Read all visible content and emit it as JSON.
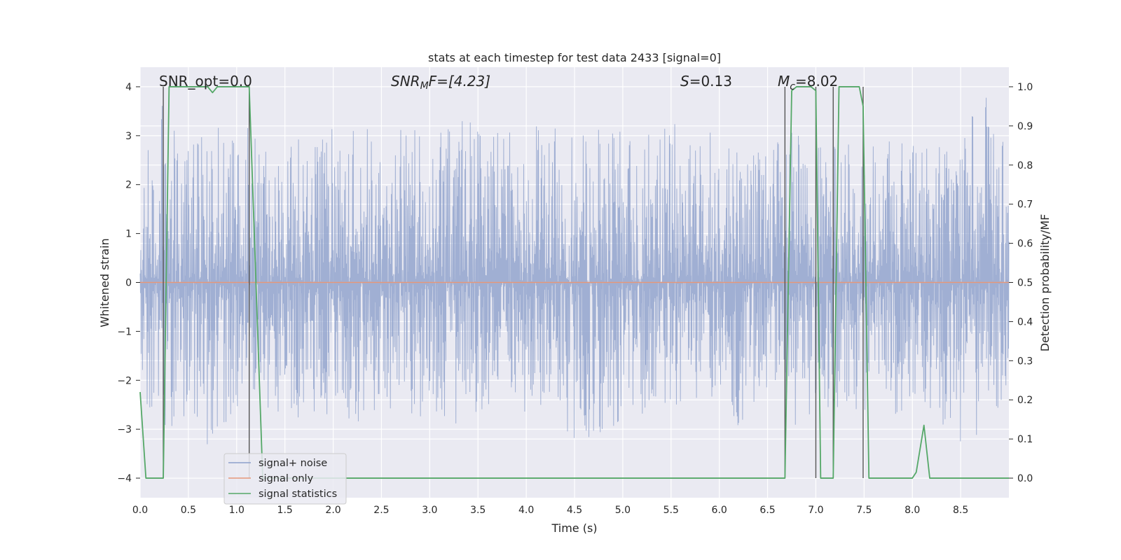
{
  "chart_data": {
    "type": "line",
    "title": "stats at each timestep for test data 2433 [signal=0]",
    "xlabel": "Time (s)",
    "ylabel": "Whitened strain",
    "y2label": "Detection probability/MF",
    "xlim": [
      0.0,
      9.0
    ],
    "ylim": [
      -4.4,
      4.4
    ],
    "y2lim": [
      -0.05,
      1.05
    ],
    "x_ticks": [
      "0.0",
      "0.5",
      "1.0",
      "1.5",
      "2.0",
      "2.5",
      "3.0",
      "3.5",
      "4.0",
      "4.5",
      "5.0",
      "5.5",
      "6.0",
      "6.5",
      "7.0",
      "7.5",
      "8.0",
      "8.5"
    ],
    "y_ticks": [
      "4",
      "3",
      "2",
      "1",
      "0",
      "−1",
      "−2",
      "−3",
      "−4"
    ],
    "y2_ticks": [
      "1.0",
      "0.9",
      "0.8",
      "0.7",
      "0.6",
      "0.5",
      "0.4",
      "0.3",
      "0.2",
      "0.1",
      "0.0"
    ],
    "legend": {
      "position": "lower-left",
      "entries": [
        {
          "label": "signal+ noise",
          "color": "#8da0cb"
        },
        {
          "label": "signal only",
          "color": "#e5977a"
        },
        {
          "label": "signal statistics",
          "color": "#55a868"
        }
      ]
    },
    "annotations": {
      "snr_opt": "SNR_opt=0.0",
      "snr_mf_sym": "SNR",
      "snr_mf_sub": "M",
      "snr_mf_tail": "F=[4.23]",
      "s_sym": "S",
      "s_val": "=0.13",
      "mc_sym": "M",
      "mc_sub": "c",
      "mc_val": "=8.02"
    },
    "series": [
      {
        "name": "signal+ noise",
        "kind": "noise",
        "color": "#8da0cb",
        "envelope": [
          [
            0.0,
            2.2,
            -2.4
          ],
          [
            0.25,
            3.9,
            -3.1
          ],
          [
            0.5,
            3.0,
            -2.9
          ],
          [
            0.75,
            3.3,
            -3.7
          ],
          [
            1.0,
            3.6,
            -2.6
          ],
          [
            1.25,
            3.3,
            -2.8
          ],
          [
            1.5,
            2.9,
            -2.7
          ],
          [
            1.75,
            3.1,
            -2.9
          ],
          [
            2.0,
            3.2,
            -2.7
          ],
          [
            2.25,
            3.1,
            -3.2
          ],
          [
            2.5,
            3.2,
            -2.6
          ],
          [
            2.75,
            3.2,
            -3.0
          ],
          [
            3.0,
            3.0,
            -2.6
          ],
          [
            3.25,
            3.2,
            -3.0
          ],
          [
            3.5,
            3.6,
            -2.7
          ],
          [
            3.75,
            3.1,
            -2.6
          ],
          [
            4.0,
            3.2,
            -3.0
          ],
          [
            4.25,
            3.3,
            -2.6
          ],
          [
            4.5,
            3.0,
            -3.3
          ],
          [
            4.75,
            3.2,
            -3.5
          ],
          [
            5.0,
            3.1,
            -2.7
          ],
          [
            5.25,
            3.1,
            -2.7
          ],
          [
            5.5,
            3.3,
            -2.9
          ],
          [
            5.75,
            3.1,
            -2.6
          ],
          [
            6.0,
            3.4,
            -3.3
          ],
          [
            6.25,
            2.9,
            -3.1
          ],
          [
            6.5,
            3.0,
            -2.6
          ],
          [
            6.75,
            3.1,
            -3.2
          ],
          [
            7.0,
            2.8,
            -2.8
          ],
          [
            7.25,
            2.8,
            -2.6
          ],
          [
            7.5,
            3.1,
            -2.6
          ],
          [
            7.75,
            2.9,
            -2.9
          ],
          [
            8.0,
            2.8,
            -2.6
          ],
          [
            8.25,
            3.0,
            -2.9
          ],
          [
            8.5,
            3.2,
            -3.3
          ],
          [
            8.75,
            3.9,
            -3.2
          ],
          [
            9.0,
            2.6,
            -2.6
          ]
        ]
      },
      {
        "name": "signal only",
        "color": "#e5977a",
        "x": [
          0.0,
          9.0
        ],
        "y": [
          0.0,
          0.0
        ]
      },
      {
        "name": "signal statistics",
        "axis": "right",
        "color": "#55a868",
        "x": [
          0.0,
          0.06,
          0.24,
          0.3,
          0.7,
          0.75,
          0.8,
          1.13,
          1.27,
          1.4,
          2.0,
          3.0,
          4.0,
          5.0,
          6.0,
          6.68,
          6.75,
          6.8,
          6.95,
          7.0,
          7.05,
          7.12,
          7.18,
          7.24,
          7.45,
          7.49,
          7.55,
          7.95,
          8.0,
          8.04,
          8.12,
          8.18,
          8.25,
          8.5,
          9.0
        ],
        "y": [
          0.22,
          0.0,
          0.0,
          1.0,
          1.0,
          0.985,
          1.0,
          1.0,
          0.0,
          0.0,
          0.0,
          0.0,
          0.0,
          0.0,
          0.0,
          0.0,
          0.99,
          1.0,
          1.0,
          0.99,
          0.0,
          0.0,
          0.0,
          1.0,
          1.0,
          0.95,
          0.0,
          0.0,
          0.0,
          0.015,
          0.135,
          0.0,
          0.0,
          0.0,
          0.0
        ]
      }
    ],
    "vertical_lines": [
      0.24,
      1.13,
      6.68,
      7.0,
      7.18,
      7.49
    ]
  }
}
